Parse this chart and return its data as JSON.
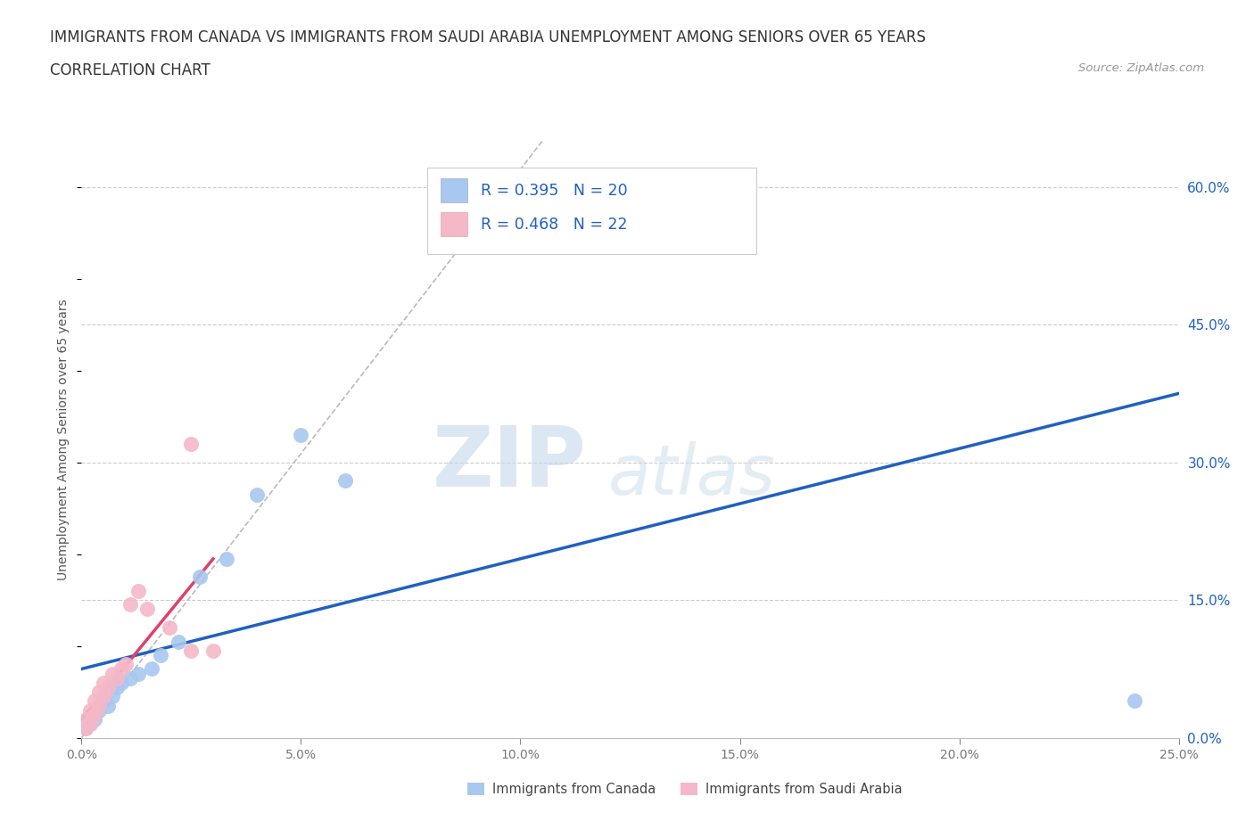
{
  "title_line1": "IMMIGRANTS FROM CANADA VS IMMIGRANTS FROM SAUDI ARABIA UNEMPLOYMENT AMONG SENIORS OVER 65 YEARS",
  "title_line2": "CORRELATION CHART",
  "source_text": "Source: ZipAtlas.com",
  "ylabel": "Unemployment Among Seniors over 65 years",
  "xlim": [
    0.0,
    0.25
  ],
  "ylim": [
    0.0,
    0.65
  ],
  "xticks": [
    0.0,
    0.05,
    0.1,
    0.15,
    0.2,
    0.25
  ],
  "yticks": [
    0.0,
    0.15,
    0.3,
    0.45,
    0.6
  ],
  "ytick_labels_right": [
    "0.0%",
    "15.0%",
    "30.0%",
    "45.0%",
    "60.0%"
  ],
  "xtick_labels": [
    "0.0%",
    "5.0%",
    "10.0%",
    "15.0%",
    "20.0%",
    "25.0%"
  ],
  "canada_R": 0.395,
  "canada_N": 20,
  "saudi_R": 0.468,
  "saudi_N": 22,
  "canada_color": "#a8c8f0",
  "saudi_color": "#f4b8c8",
  "canada_line_color": "#2060c0",
  "saudi_line_color": "#e0406a",
  "watermark_zip": "ZIP",
  "watermark_atlas": "atlas",
  "background_color": "#ffffff",
  "grid_color": "#cccccc",
  "canada_scatter_x": [
    0.001,
    0.002,
    0.003,
    0.004,
    0.005,
    0.006,
    0.007,
    0.008,
    0.009,
    0.011,
    0.013,
    0.016,
    0.018,
    0.022,
    0.027,
    0.033,
    0.04,
    0.05,
    0.06,
    0.24
  ],
  "canada_scatter_y": [
    0.01,
    0.015,
    0.02,
    0.03,
    0.04,
    0.035,
    0.045,
    0.055,
    0.06,
    0.065,
    0.07,
    0.075,
    0.09,
    0.105,
    0.175,
    0.195,
    0.265,
    0.33,
    0.28,
    0.04
  ],
  "saudi_scatter_x": [
    0.001,
    0.001,
    0.002,
    0.002,
    0.003,
    0.003,
    0.004,
    0.004,
    0.005,
    0.005,
    0.006,
    0.007,
    0.008,
    0.009,
    0.01,
    0.011,
    0.013,
    0.015,
    0.02,
    0.025,
    0.025,
    0.03
  ],
  "saudi_scatter_y": [
    0.01,
    0.02,
    0.015,
    0.03,
    0.025,
    0.04,
    0.035,
    0.05,
    0.045,
    0.06,
    0.055,
    0.07,
    0.065,
    0.075,
    0.08,
    0.145,
    0.16,
    0.14,
    0.12,
    0.095,
    0.32,
    0.095
  ],
  "canada_line_x0": 0.0,
  "canada_line_y0": 0.075,
  "canada_line_x1": 0.25,
  "canada_line_y1": 0.375,
  "saudi_line_x0": 0.0,
  "saudi_line_y0": 0.02,
  "saudi_line_x1": 0.03,
  "saudi_line_y1": 0.195,
  "diag_line_x0": 0.0,
  "diag_line_y0": 0.0,
  "diag_line_x1": 0.105,
  "diag_line_y1": 0.65,
  "legend_canada_label": "R = 0.395   N = 20",
  "legend_saudi_label": "R = 0.468   N = 22",
  "bottom_canada_label": "Immigrants from Canada",
  "bottom_saudi_label": "Immigrants from Saudi Arabia"
}
